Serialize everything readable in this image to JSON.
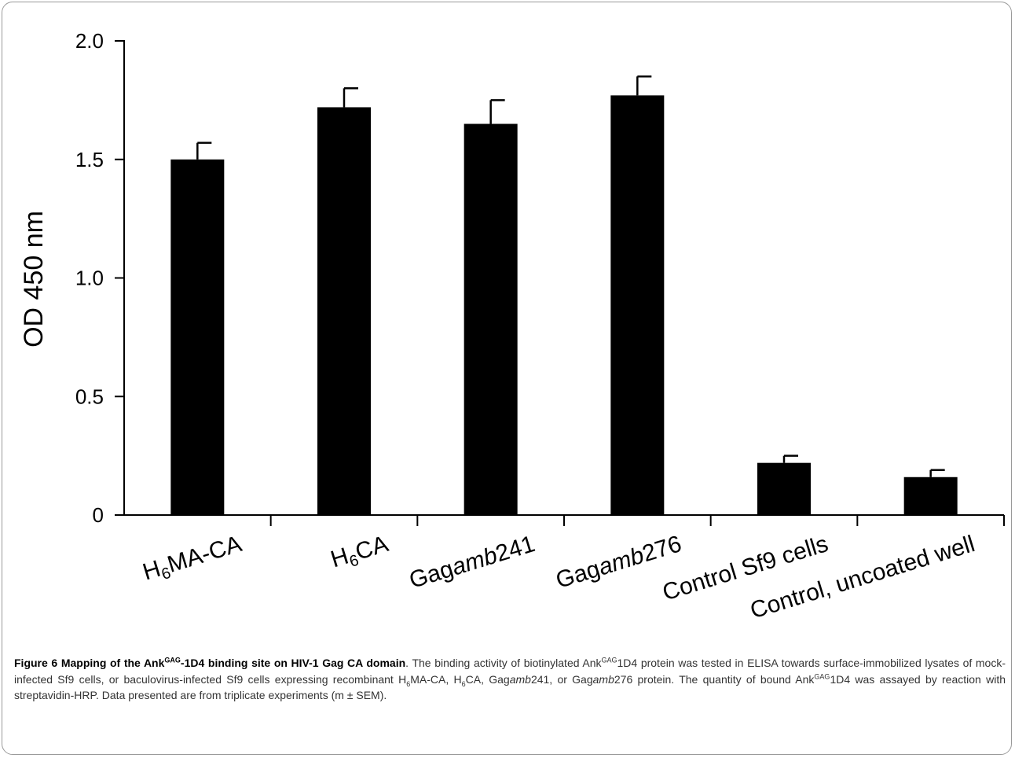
{
  "chart_data": {
    "type": "bar",
    "categories": [
      {
        "parts": [
          {
            "t": "H"
          },
          {
            "t": "6",
            "sub": true
          },
          {
            "t": "MA-CA"
          }
        ]
      },
      {
        "parts": [
          {
            "t": "H"
          },
          {
            "t": "6",
            "sub": true
          },
          {
            "t": "CA"
          }
        ]
      },
      {
        "parts": [
          {
            "t": "Gag"
          },
          {
            "t": "amb",
            "i": true
          },
          {
            "t": "241"
          }
        ]
      },
      {
        "parts": [
          {
            "t": "Gag"
          },
          {
            "t": "amb",
            "i": true
          },
          {
            "t": "276"
          }
        ]
      },
      {
        "parts": [
          {
            "t": "Control Sf9 cells"
          }
        ]
      },
      {
        "parts": [
          {
            "t": "Control, uncoated well"
          }
        ]
      }
    ],
    "values": [
      1.5,
      1.72,
      1.65,
      1.77,
      0.22,
      0.16
    ],
    "errors": [
      0.07,
      0.08,
      0.1,
      0.08,
      0.03,
      0.03
    ],
    "ylabel": "OD 450 nm",
    "ylim": [
      0,
      2.0
    ],
    "yticks": [
      0,
      0.5,
      1.0,
      1.5,
      2.0
    ],
    "ytick_labels": [
      "0",
      "0.5",
      "1.0",
      "1.5",
      "2.0"
    ],
    "bar_color": "#000000",
    "grid": false
  },
  "caption": {
    "title": [
      {
        "t": "Figure 6 Mapping of the Ank"
      },
      {
        "t": "GAG",
        "sup": true
      },
      {
        "t": "-1D4 binding site on HIV-1 Gag CA domain"
      }
    ],
    "body": [
      {
        "t": ". The binding activity of biotinylated Ank"
      },
      {
        "t": "GAG",
        "sup": true
      },
      {
        "t": "1D4 protein was tested in ELISA towards surface-immobilized lysates of mock-infected Sf9 cells, or baculovirus-infected Sf9 cells expressing recombinant H"
      },
      {
        "t": "6",
        "sub": true
      },
      {
        "t": "MA-CA, H"
      },
      {
        "t": "6",
        "sub": true
      },
      {
        "t": "CA, Gag"
      },
      {
        "t": "amb",
        "i": true
      },
      {
        "t": "241, or Gag"
      },
      {
        "t": "amb",
        "i": true
      },
      {
        "t": "276 protein. The quantity of bound Ank"
      },
      {
        "t": "GAG",
        "sup": true
      },
      {
        "t": "1D4 was assayed by reaction with streptavidin-HRP. Data presented are from triplicate experiments (m ± SEM)."
      }
    ]
  }
}
